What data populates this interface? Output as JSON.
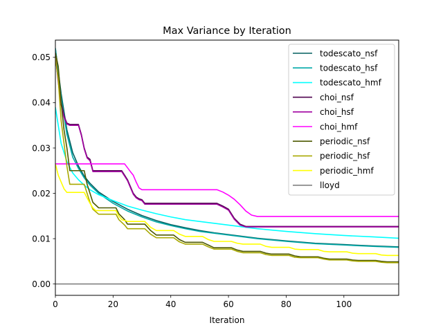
{
  "chart_data": {
    "type": "line",
    "title": "Max Variance by Iteration",
    "xlabel": "Iteration",
    "ylabel": "",
    "xlim": [
      0,
      119
    ],
    "ylim": [
      -0.0025,
      0.0538
    ],
    "xticks": [
      0,
      20,
      40,
      60,
      80,
      100
    ],
    "xtick_labels": [
      "0",
      "20",
      "40",
      "60",
      "80",
      "100"
    ],
    "yticks": [
      0.0,
      0.01,
      0.02,
      0.03,
      0.04,
      0.05
    ],
    "ytick_labels": [
      "0.00",
      "0.01",
      "0.02",
      "0.03",
      "0.04",
      "0.05"
    ],
    "grid": false,
    "legend_position": "top-right",
    "series": [
      {
        "name": "todescato_nsf",
        "color": "#005f5f",
        "points": [
          [
            0,
            0.052
          ],
          [
            2,
            0.042
          ],
          [
            4,
            0.034
          ],
          [
            6,
            0.029
          ],
          [
            8,
            0.026
          ],
          [
            10,
            0.0238
          ],
          [
            12,
            0.0222
          ],
          [
            15,
            0.0203
          ],
          [
            20,
            0.0182
          ],
          [
            25,
            0.0165
          ],
          [
            30,
            0.0151
          ],
          [
            35,
            0.014
          ],
          [
            40,
            0.0131
          ],
          [
            45,
            0.0124
          ],
          [
            50,
            0.0118
          ],
          [
            55,
            0.0113
          ],
          [
            60,
            0.0109
          ],
          [
            65,
            0.0105
          ],
          [
            70,
            0.0101
          ],
          [
            80,
            0.0095
          ],
          [
            90,
            0.009
          ],
          [
            100,
            0.0087
          ],
          [
            110,
            0.0084
          ],
          [
            119,
            0.0082
          ]
        ]
      },
      {
        "name": "todescato_hsf",
        "color": "#00a8a8",
        "points": [
          [
            0,
            0.052
          ],
          [
            2,
            0.041
          ],
          [
            4,
            0.033
          ],
          [
            6,
            0.028
          ],
          [
            8,
            0.0255
          ],
          [
            10,
            0.0234
          ],
          [
            12,
            0.0218
          ],
          [
            15,
            0.02
          ],
          [
            20,
            0.0178
          ],
          [
            25,
            0.0161
          ],
          [
            30,
            0.0148
          ],
          [
            35,
            0.0137
          ],
          [
            40,
            0.0129
          ],
          [
            45,
            0.0122
          ],
          [
            50,
            0.0116
          ],
          [
            55,
            0.0112
          ],
          [
            60,
            0.0108
          ],
          [
            65,
            0.0104
          ],
          [
            70,
            0.01
          ],
          [
            80,
            0.0094
          ],
          [
            90,
            0.0089
          ],
          [
            100,
            0.0086
          ],
          [
            110,
            0.0083
          ],
          [
            119,
            0.0081
          ]
        ]
      },
      {
        "name": "todescato_hmf",
        "color": "#00ffff",
        "points": [
          [
            0,
            0.039
          ],
          [
            2,
            0.031
          ],
          [
            4,
            0.027
          ],
          [
            6,
            0.0245
          ],
          [
            8,
            0.023
          ],
          [
            10,
            0.0218
          ],
          [
            12,
            0.0208
          ],
          [
            15,
            0.0197
          ],
          [
            20,
            0.0184
          ],
          [
            25,
            0.0172
          ],
          [
            30,
            0.0163
          ],
          [
            35,
            0.0155
          ],
          [
            40,
            0.0148
          ],
          [
            45,
            0.0142
          ],
          [
            50,
            0.0138
          ],
          [
            55,
            0.0134
          ],
          [
            60,
            0.013
          ],
          [
            65,
            0.0126
          ],
          [
            70,
            0.0122
          ],
          [
            80,
            0.0116
          ],
          [
            90,
            0.0111
          ],
          [
            100,
            0.0107
          ],
          [
            110,
            0.0104
          ],
          [
            119,
            0.0101
          ]
        ]
      },
      {
        "name": "choi_nsf",
        "color": "#4d004d",
        "points": [
          [
            0,
            0.0505
          ],
          [
            1,
            0.045
          ],
          [
            2,
            0.04
          ],
          [
            3,
            0.037
          ],
          [
            4,
            0.0355
          ],
          [
            5,
            0.0352
          ],
          [
            8,
            0.0352
          ],
          [
            9,
            0.033
          ],
          [
            10,
            0.03
          ],
          [
            11,
            0.028
          ],
          [
            12,
            0.0275
          ],
          [
            13,
            0.025
          ],
          [
            23,
            0.025
          ],
          [
            24,
            0.024
          ],
          [
            25,
            0.023
          ],
          [
            26,
            0.0215
          ],
          [
            27,
            0.02
          ],
          [
            28,
            0.0192
          ],
          [
            29,
            0.0188
          ],
          [
            30,
            0.0186
          ],
          [
            31,
            0.0178
          ],
          [
            56,
            0.0178
          ],
          [
            58,
            0.0172
          ],
          [
            60,
            0.0165
          ],
          [
            62,
            0.0145
          ],
          [
            64,
            0.0132
          ],
          [
            66,
            0.0127
          ],
          [
            119,
            0.0127
          ]
        ]
      },
      {
        "name": "choi_hsf",
        "color": "#a000a0",
        "points": [
          [
            0,
            0.0505
          ],
          [
            1,
            0.0445
          ],
          [
            2,
            0.0395
          ],
          [
            3,
            0.0368
          ],
          [
            4,
            0.0353
          ],
          [
            5,
            0.035
          ],
          [
            8,
            0.035
          ],
          [
            9,
            0.0328
          ],
          [
            10,
            0.0298
          ],
          [
            11,
            0.0278
          ],
          [
            12,
            0.0272
          ],
          [
            13,
            0.0248
          ],
          [
            23,
            0.0248
          ],
          [
            24,
            0.0238
          ],
          [
            25,
            0.0228
          ],
          [
            26,
            0.0213
          ],
          [
            27,
            0.0198
          ],
          [
            28,
            0.019
          ],
          [
            29,
            0.0186
          ],
          [
            30,
            0.0184
          ],
          [
            31,
            0.0176
          ],
          [
            56,
            0.0176
          ],
          [
            58,
            0.017
          ],
          [
            60,
            0.0163
          ],
          [
            62,
            0.0143
          ],
          [
            64,
            0.013
          ],
          [
            66,
            0.0126
          ],
          [
            119,
            0.0126
          ]
        ]
      },
      {
        "name": "choi_hmf",
        "color": "#ff00ff",
        "points": [
          [
            0,
            0.0265
          ],
          [
            24,
            0.0265
          ],
          [
            26,
            0.0248
          ],
          [
            27,
            0.024
          ],
          [
            28,
            0.0225
          ],
          [
            29,
            0.0212
          ],
          [
            30,
            0.0208
          ],
          [
            56,
            0.0208
          ],
          [
            58,
            0.0203
          ],
          [
            60,
            0.0196
          ],
          [
            62,
            0.0187
          ],
          [
            64,
            0.0175
          ],
          [
            66,
            0.0161
          ],
          [
            68,
            0.0152
          ],
          [
            70,
            0.0149
          ],
          [
            119,
            0.0149
          ]
        ]
      },
      {
        "name": "periodic_nsf",
        "color": "#4d5900",
        "points": [
          [
            0,
            0.051
          ],
          [
            1,
            0.048
          ],
          [
            2,
            0.04
          ],
          [
            3,
            0.034
          ],
          [
            4,
            0.03
          ],
          [
            5,
            0.025
          ],
          [
            10,
            0.025
          ],
          [
            11,
            0.022
          ],
          [
            12,
            0.02
          ],
          [
            13,
            0.018
          ],
          [
            15,
            0.0168
          ],
          [
            21,
            0.0168
          ],
          [
            22,
            0.0155
          ],
          [
            24,
            0.0142
          ],
          [
            25,
            0.0132
          ],
          [
            31,
            0.0132
          ],
          [
            33,
            0.0118
          ],
          [
            35,
            0.0108
          ],
          [
            41,
            0.0108
          ],
          [
            43,
            0.0098
          ],
          [
            45,
            0.0092
          ],
          [
            51,
            0.0092
          ],
          [
            53,
            0.0086
          ],
          [
            55,
            0.008
          ],
          [
            61,
            0.008
          ],
          [
            63,
            0.0075
          ],
          [
            65,
            0.0072
          ],
          [
            71,
            0.0072
          ],
          [
            73,
            0.0068
          ],
          [
            75,
            0.0066
          ],
          [
            81,
            0.0066
          ],
          [
            83,
            0.0062
          ],
          [
            85,
            0.006
          ],
          [
            91,
            0.006
          ],
          [
            93,
            0.0057
          ],
          [
            95,
            0.0055
          ],
          [
            101,
            0.0055
          ],
          [
            103,
            0.0053
          ],
          [
            105,
            0.0052
          ],
          [
            111,
            0.0052
          ],
          [
            113,
            0.005
          ],
          [
            115,
            0.0049
          ],
          [
            119,
            0.0049
          ]
        ]
      },
      {
        "name": "periodic_hsf",
        "color": "#a8a800",
        "points": [
          [
            0,
            0.05
          ],
          [
            1,
            0.045
          ],
          [
            2,
            0.036
          ],
          [
            3,
            0.031
          ],
          [
            4,
            0.026
          ],
          [
            5,
            0.022
          ],
          [
            10,
            0.022
          ],
          [
            11,
            0.02
          ],
          [
            12,
            0.018
          ],
          [
            13,
            0.0165
          ],
          [
            15,
            0.0154
          ],
          [
            21,
            0.0154
          ],
          [
            22,
            0.0142
          ],
          [
            24,
            0.013
          ],
          [
            25,
            0.0122
          ],
          [
            31,
            0.0122
          ],
          [
            33,
            0.011
          ],
          [
            35,
            0.0102
          ],
          [
            41,
            0.0102
          ],
          [
            43,
            0.0093
          ],
          [
            45,
            0.0088
          ],
          [
            51,
            0.0088
          ],
          [
            53,
            0.0082
          ],
          [
            55,
            0.0077
          ],
          [
            61,
            0.0077
          ],
          [
            63,
            0.0072
          ],
          [
            65,
            0.0069
          ],
          [
            71,
            0.0069
          ],
          [
            73,
            0.0065
          ],
          [
            75,
            0.0063
          ],
          [
            81,
            0.0063
          ],
          [
            83,
            0.0059
          ],
          [
            85,
            0.0058
          ],
          [
            91,
            0.0058
          ],
          [
            93,
            0.0055
          ],
          [
            95,
            0.0053
          ],
          [
            101,
            0.0053
          ],
          [
            103,
            0.0051
          ],
          [
            105,
            0.005
          ],
          [
            111,
            0.005
          ],
          [
            113,
            0.0048
          ],
          [
            115,
            0.0047
          ],
          [
            119,
            0.0047
          ]
        ]
      },
      {
        "name": "periodic_hmf",
        "color": "#ffff00",
        "points": [
          [
            0,
            0.0265
          ],
          [
            1,
            0.024
          ],
          [
            2,
            0.0225
          ],
          [
            3,
            0.021
          ],
          [
            4,
            0.0202
          ],
          [
            10,
            0.0202
          ],
          [
            11,
            0.019
          ],
          [
            12,
            0.0178
          ],
          [
            13,
            0.0168
          ],
          [
            14,
            0.0162
          ],
          [
            21,
            0.0162
          ],
          [
            22,
            0.015
          ],
          [
            23,
            0.0142
          ],
          [
            25,
            0.0138
          ],
          [
            31,
            0.0138
          ],
          [
            33,
            0.0125
          ],
          [
            35,
            0.0118
          ],
          [
            41,
            0.0118
          ],
          [
            43,
            0.011
          ],
          [
            45,
            0.0105
          ],
          [
            51,
            0.0105
          ],
          [
            53,
            0.0098
          ],
          [
            55,
            0.0094
          ],
          [
            61,
            0.0094
          ],
          [
            63,
            0.009
          ],
          [
            65,
            0.0088
          ],
          [
            71,
            0.0088
          ],
          [
            73,
            0.0083
          ],
          [
            75,
            0.0081
          ],
          [
            81,
            0.0081
          ],
          [
            83,
            0.0077
          ],
          [
            85,
            0.0076
          ],
          [
            91,
            0.0076
          ],
          [
            93,
            0.0072
          ],
          [
            95,
            0.0071
          ],
          [
            101,
            0.0071
          ],
          [
            103,
            0.0068
          ],
          [
            105,
            0.0067
          ],
          [
            111,
            0.0067
          ],
          [
            113,
            0.0064
          ],
          [
            115,
            0.0063
          ],
          [
            119,
            0.0063
          ]
        ]
      },
      {
        "name": "lloyd",
        "color": "#808080",
        "points": [
          [
            0,
            0.0
          ],
          [
            119,
            0.0
          ]
        ]
      }
    ]
  }
}
